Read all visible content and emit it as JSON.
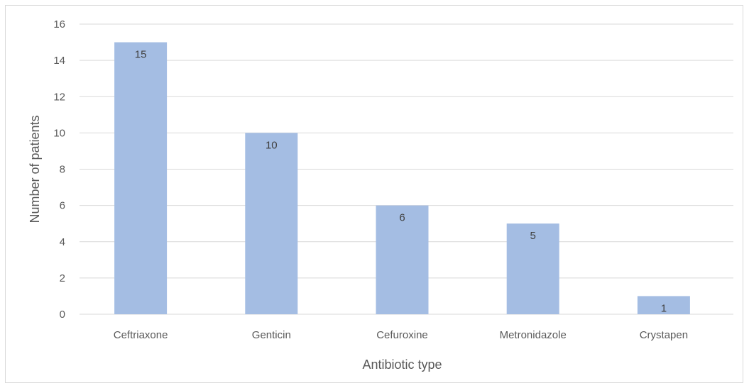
{
  "chart_data": {
    "type": "bar",
    "title": "",
    "categories": [
      "Ceftriaxone",
      "Genticin",
      "Cefuroxine",
      "Metronidazole",
      "Crystapen"
    ],
    "series": [
      {
        "values": [
          15,
          10,
          6,
          5,
          1
        ],
        "color": "#a4bde3"
      }
    ],
    "data_labels": [
      "15",
      "10",
      "6",
      "5",
      "1"
    ],
    "xlabel": "Antibiotic type",
    "ylabel": "Number of patients",
    "ylim": [
      0,
      16
    ],
    "yticks": [
      0,
      2,
      4,
      6,
      8,
      10,
      12,
      14,
      16
    ],
    "ytick_labels": [
      "0",
      "2",
      "4",
      "6",
      "8",
      "10",
      "12",
      "14",
      "16"
    ],
    "grid": true,
    "gridline_color": "#d9d9d9",
    "legend": "none"
  }
}
